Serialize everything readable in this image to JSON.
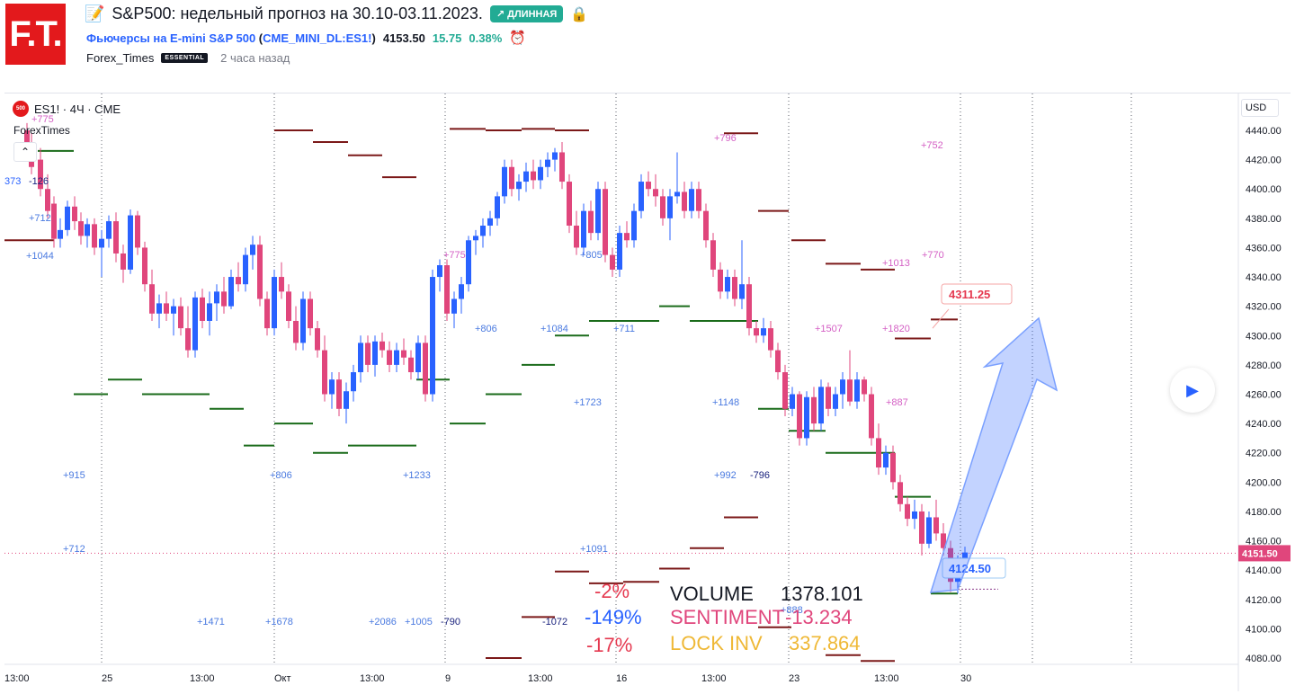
{
  "header": {
    "logo_text": "F.T.",
    "title_icon": "chart-edit-icon",
    "title": "S&P500: недельный прогноз на 30.10-03.11.2023.",
    "badge": "↗ ДЛИННАЯ",
    "symbol_name": "Фьючерсы на E-mini S&P 500",
    "symbol_code_open": " (",
    "symbol_code": "CME_MINI_DL:ES1!",
    "symbol_code_close": ")",
    "last_price": "4153.50",
    "change": "15.75",
    "change_pct": "0.38%",
    "author": "Forex_Times",
    "author_badge": "ESSENTIAL",
    "time_ago": "2 часа назад"
  },
  "chart": {
    "legend": "ES1! · 4Ч · CME",
    "legend_icon": "500",
    "indicator": "ForexTimes",
    "currency": "USD",
    "y_ticks": [
      "4440.00",
      "4420.00",
      "4400.00",
      "4380.00",
      "4360.00",
      "4340.00",
      "4320.00",
      "4300.00",
      "4280.00",
      "4260.00",
      "4240.00",
      "4220.00",
      "4200.00",
      "4180.00",
      "4160.00",
      "4140.00",
      "4120.00",
      "4100.00",
      "4080.00"
    ],
    "x_ticks": [
      "13:00",
      "25",
      "13:00",
      "Окт",
      "13:00",
      "9",
      "13:00",
      "16",
      "13:00",
      "23",
      "13:00",
      "30"
    ],
    "last_price_label": "4151.50",
    "target_label": "4311.25",
    "low_label": "4124.50",
    "colors": {
      "up": "#2962ff",
      "down": "#e0467c",
      "resistance": "#7b1818",
      "support": "#1a6b1a",
      "arrow": "#2962ff",
      "accent": "#e3191c"
    }
  },
  "annotations": [
    {
      "t": "+775",
      "c": "#d45fc4"
    },
    {
      "t": "373",
      "c": "#2962ff"
    },
    {
      "t": "-126",
      "c": "#1a237e"
    },
    {
      "t": "+712",
      "c": "#4a7ae0"
    },
    {
      "t": "+1044",
      "c": "#4a7ae0"
    },
    {
      "t": "+915",
      "c": "#4a7ae0"
    },
    {
      "t": "+712",
      "c": "#4a7ae0"
    },
    {
      "t": "+1471",
      "c": "#4a7ae0"
    },
    {
      "t": "+1678",
      "c": "#4a7ae0"
    },
    {
      "t": "+806",
      "c": "#4a7ae0"
    },
    {
      "t": "+1233",
      "c": "#4a7ae0"
    },
    {
      "t": "+2086",
      "c": "#4a7ae0"
    },
    {
      "t": "+1005",
      "c": "#4a7ae0"
    },
    {
      "t": "-790",
      "c": "#1a237e"
    },
    {
      "t": "+775",
      "c": "#d45fc4"
    },
    {
      "t": "+806",
      "c": "#4a7ae0"
    },
    {
      "t": "+805",
      "c": "#4a7ae0"
    },
    {
      "t": "+1084",
      "c": "#4a7ae0"
    },
    {
      "t": "+711",
      "c": "#4a7ae0"
    },
    {
      "t": "+1723",
      "c": "#4a7ae0"
    },
    {
      "t": "+1091",
      "c": "#4a7ae0"
    },
    {
      "t": "-1072",
      "c": "#1a237e"
    },
    {
      "t": "+796",
      "c": "#d45fc4"
    },
    {
      "t": "+1148",
      "c": "#4a7ae0"
    },
    {
      "t": "+992",
      "c": "#4a7ae0"
    },
    {
      "t": "-796",
      "c": "#1a237e"
    },
    {
      "t": "+888",
      "c": "#4a7ae0"
    },
    {
      "t": "+752",
      "c": "#d45fc4"
    },
    {
      "t": "+1013",
      "c": "#d45fc4"
    },
    {
      "t": "+770",
      "c": "#d45fc4"
    },
    {
      "t": "+1507",
      "c": "#d45fc4"
    },
    {
      "t": "+1820",
      "c": "#d45fc4"
    },
    {
      "t": "+887",
      "c": "#d45fc4"
    }
  ],
  "stats": {
    "pct1": "-2%",
    "pct2": "-149%",
    "pct3": "-17%",
    "volume_label": "VOLUME",
    "volume_value": "1378.101",
    "sentiment_label": "SENTIMENT",
    "sentiment_value": "-13.234",
    "lockinv_label": "LOCK INV",
    "lockinv_value": "337.864"
  },
  "controls": {
    "play_icon": "play-icon"
  }
}
